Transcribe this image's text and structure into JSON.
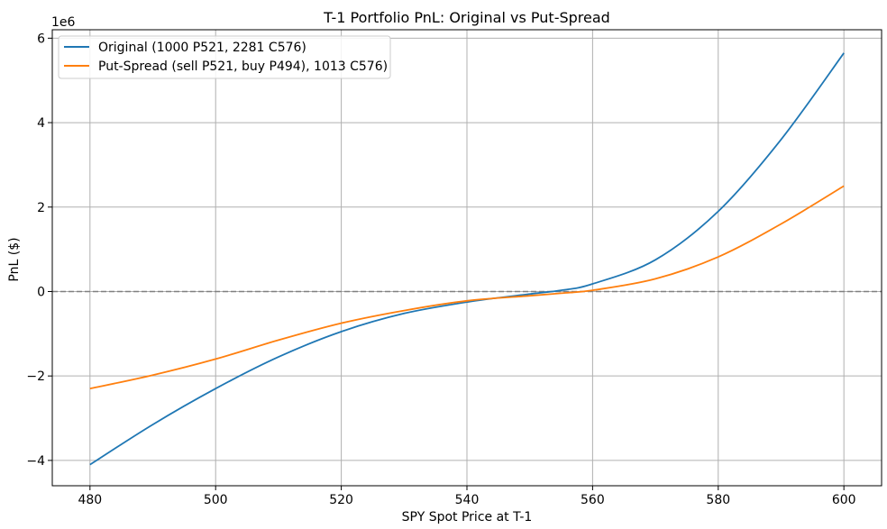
{
  "chart_data": {
    "type": "line",
    "title": "T-1 Portfolio PnL: Original vs Put-Spread",
    "xlabel": "SPY Spot Price at T-1",
    "ylabel": "PnL ($)",
    "y_scale_label": "1e6",
    "xlim": [
      474,
      606
    ],
    "ylim": [
      -4.6,
      6.2
    ],
    "x_ticks": [
      480,
      500,
      520,
      540,
      560,
      580,
      600
    ],
    "y_ticks": [
      -4,
      -2,
      0,
      2,
      4,
      6
    ],
    "x_tick_labels": [
      "480",
      "500",
      "520",
      "540",
      "560",
      "580",
      "600"
    ],
    "y_tick_labels": [
      "−4",
      "−2",
      "0",
      "2",
      "4",
      "6"
    ],
    "grid": true,
    "legend_position": "top-left",
    "reference_line": {
      "y": 0,
      "style": "dashed",
      "color": "#808080"
    },
    "x": [
      480,
      490,
      500,
      510,
      520,
      530,
      540,
      550,
      555,
      560,
      570,
      580,
      590,
      600
    ],
    "series": [
      {
        "name": "Original (1000 P521, 2281 C576)",
        "color": "#1f77b4",
        "values": [
          -4.1,
          -3.15,
          -2.3,
          -1.55,
          -0.95,
          -0.52,
          -0.25,
          -0.06,
          0.03,
          0.18,
          0.75,
          1.9,
          3.6,
          5.65
        ]
      },
      {
        "name": "Put-Spread (sell P521, buy P494), 1013 C576)",
        "color": "#ff7f0e",
        "values": [
          -2.3,
          -1.98,
          -1.6,
          -1.15,
          -0.75,
          -0.45,
          -0.22,
          -0.1,
          -0.04,
          0.03,
          0.3,
          0.82,
          1.6,
          2.5
        ]
      }
    ]
  }
}
